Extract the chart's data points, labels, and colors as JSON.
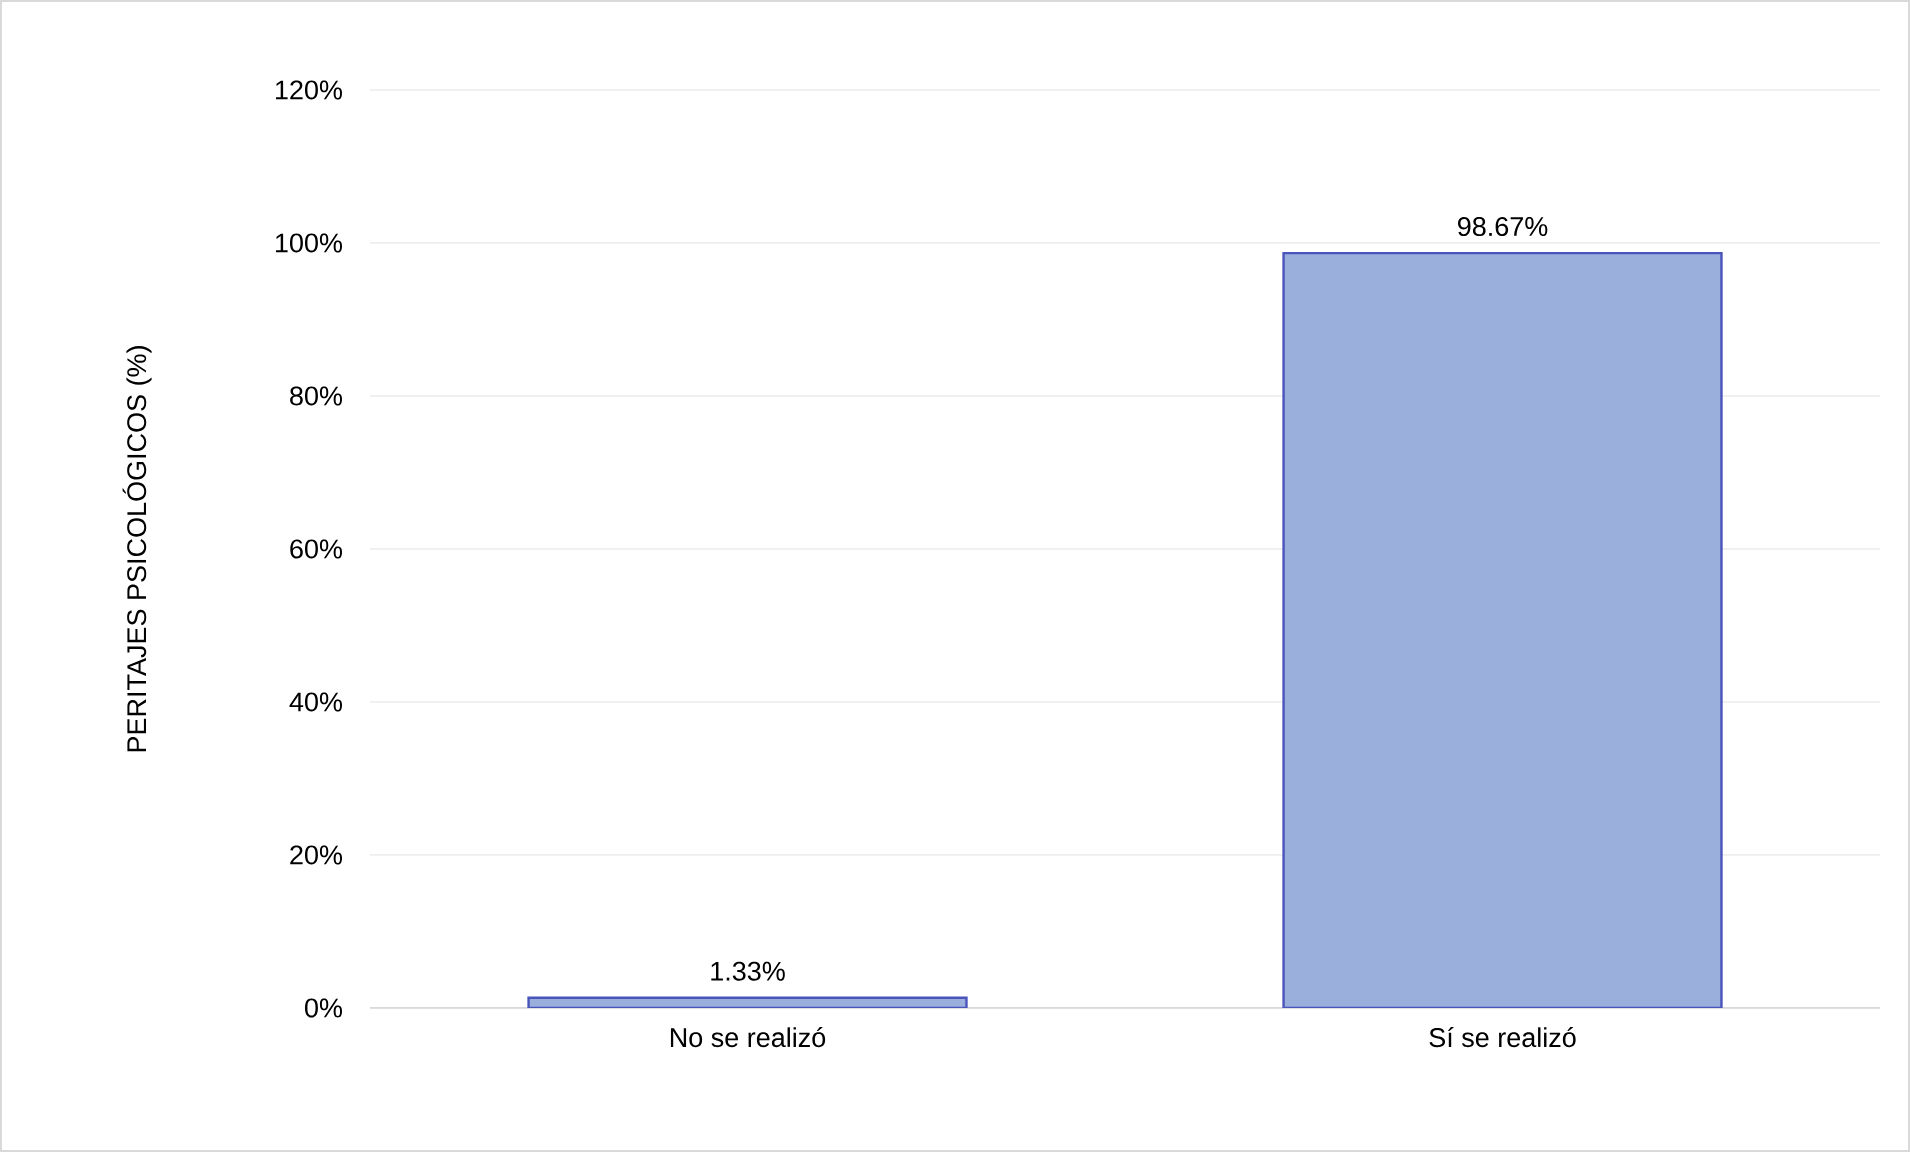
{
  "chart_data": {
    "type": "bar",
    "ylabel": "PERITAJES PSICOLÓGICOS (%)",
    "categories": [
      "No se realizó",
      "Sí se realizó"
    ],
    "values": [
      1.33,
      98.67
    ],
    "value_labels": [
      "1.33%",
      "98.67%"
    ],
    "color": "#9aafdc",
    "ylim": [
      0,
      120
    ],
    "yticks": [
      {
        "value": 0,
        "label": "0%"
      },
      {
        "value": 20,
        "label": "20%"
      },
      {
        "value": 40,
        "label": "40%"
      },
      {
        "value": 60,
        "label": "60%"
      },
      {
        "value": 80,
        "label": "80%"
      },
      {
        "value": 100,
        "label": "100%"
      },
      {
        "value": 120,
        "label": "120%"
      }
    ],
    "grid": "y"
  }
}
